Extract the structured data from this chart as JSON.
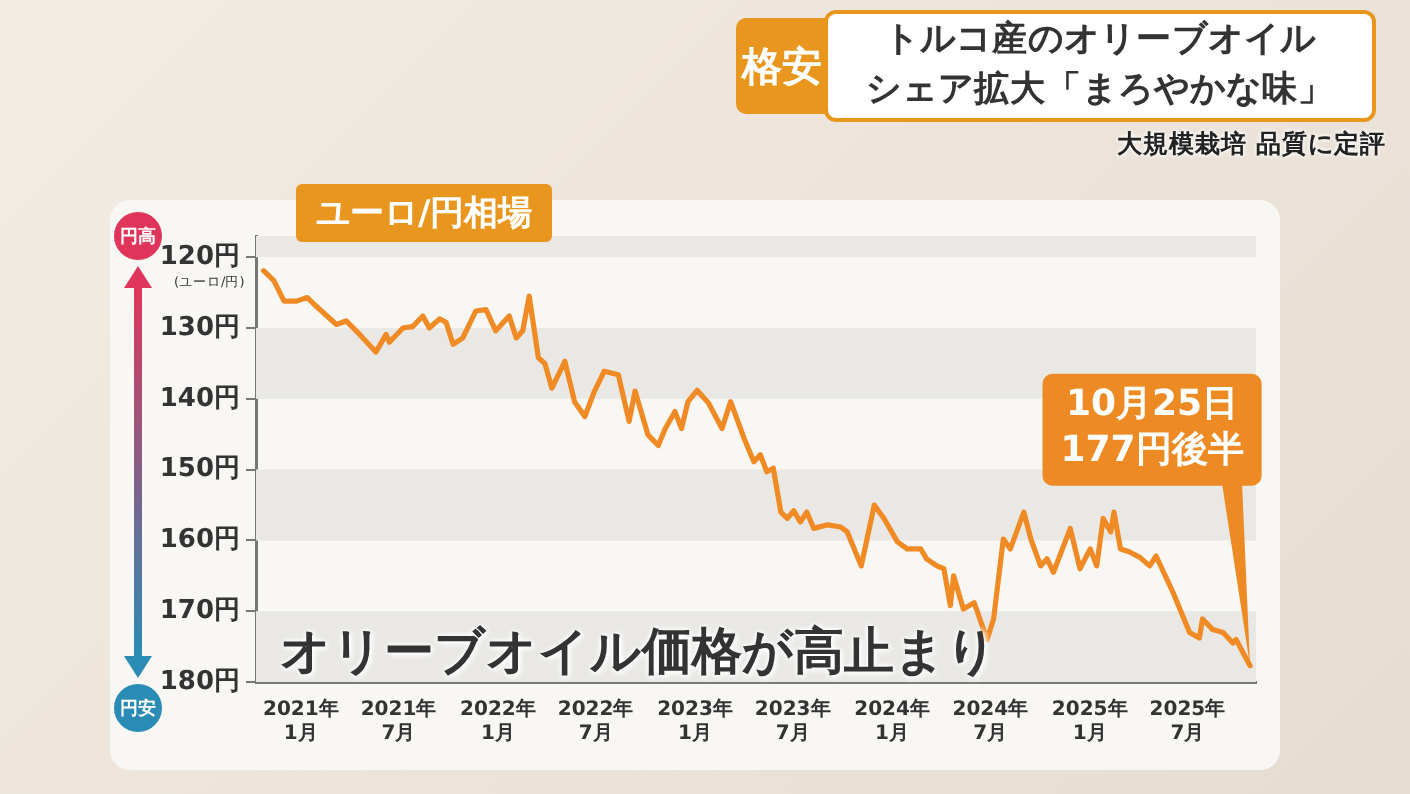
{
  "chart_data": {
    "type": "line",
    "title": "トルコ産のオリーブオイル",
    "subtitle": "シェア拡大「まろやかな味」",
    "ylabel": "(ユーロ/円)",
    "annotations": [
      "大規模栽培 品質に定評",
      "格安",
      "ユーロ/円相場",
      "円高",
      "円安",
      "オリーブオイル価格が高止まり",
      {
        "text": "10月25日\n177円後半",
        "x": "2025-10-25",
        "y": 177.7
      }
    ],
    "series": [
      {
        "color": "#f08a24",
        "x": [
          "2020-10-24",
          "2020-11-12",
          "2020-12-01",
          "2020-12-24",
          "2021-01-13",
          "2021-01-25",
          "2021-03-08",
          "2021-03-26",
          "2021-04-20",
          "2021-05-20",
          "2021-06-08",
          "2021-06-14",
          "2021-07-09",
          "2021-07-27",
          "2021-08-15",
          "2021-08-27",
          "2021-09-15",
          "2021-09-27",
          "2021-10-10",
          "2021-10-28",
          "2021-11-21",
          "2021-12-10",
          "2021-12-28",
          "2022-01-22",
          "2022-02-04",
          "2022-02-16",
          "2022-02-28",
          "2022-03-17",
          "2022-03-29",
          "2022-04-11",
          "2022-05-05",
          "2022-05-23",
          "2022-06-11",
          "2022-06-29",
          "2022-07-17",
          "2022-08-12",
          "2022-09-01",
          "2022-09-12",
          "2022-10-06",
          "2022-10-25",
          "2022-11-07",
          "2022-11-25",
          "2022-12-07",
          "2022-12-19",
          "2023-01-05",
          "2023-01-26",
          "2023-02-20",
          "2023-03-08",
          "2023-04-02",
          "2023-04-20",
          "2023-05-02",
          "2023-05-14",
          "2023-05-26",
          "2023-06-09",
          "2023-06-21",
          "2023-07-03",
          "2023-07-15",
          "2023-07-27",
          "2023-08-09",
          "2023-09-04",
          "2023-09-28",
          "2023-10-10",
          "2023-11-05",
          "2023-11-29",
          "2023-12-17",
          "2024-01-11",
          "2024-01-29",
          "2024-02-23",
          "2024-03-05",
          "2024-03-24",
          "2024-04-06",
          "2024-04-18",
          "2024-04-24",
          "2024-05-12",
          "2024-06-01",
          "2024-06-25",
          "2024-07-07",
          "2024-07-25",
          "2024-08-07",
          "2024-09-01",
          "2024-09-14",
          "2024-10-02",
          "2024-10-14",
          "2024-10-26",
          "2024-11-26",
          "2024-12-14",
          "2025-01-02",
          "2025-01-14",
          "2025-01-26",
          "2025-02-09",
          "2025-02-15",
          "2025-02-27",
          "2025-03-15",
          "2025-04-04",
          "2025-04-22",
          "2025-05-04",
          "2025-06-04",
          "2025-07-05",
          "2025-07-23",
          "2025-07-29",
          "2025-08-17",
          "2025-09-05",
          "2025-09-23",
          "2025-09-29",
          "2025-10-25"
        ],
        "values": [
          121.9,
          123.3,
          126.2,
          126.2,
          125.7,
          126.6,
          129.5,
          129,
          130.9,
          133.4,
          130.9,
          132,
          130,
          129.8,
          128.3,
          130,
          128.7,
          129.2,
          132.3,
          131.4,
          127.6,
          127.4,
          130.4,
          128.3,
          131.4,
          130.4,
          125.5,
          134.2,
          135,
          138.5,
          134.7,
          140.4,
          142.5,
          138.9,
          136.1,
          136.6,
          143.2,
          138.9,
          145.1,
          146.6,
          144.2,
          141.8,
          144.2,
          140.4,
          138.8,
          140.6,
          144.2,
          140.4,
          145.6,
          148.9,
          147.9,
          150.3,
          149.8,
          156,
          156.9,
          155.8,
          157.4,
          156,
          158.3,
          157.8,
          158.1,
          158.8,
          163.6,
          155,
          156.9,
          160.2,
          161.2,
          161.2,
          162.6,
          163.6,
          164,
          169.2,
          165,
          169.7,
          168.8,
          174,
          171.1,
          159.8,
          161.2,
          156,
          159.8,
          163.6,
          162.6,
          164.5,
          158.3,
          164,
          161.2,
          163.6,
          156.9,
          158.8,
          156,
          161.2,
          161.6,
          162.4,
          163.6,
          162.2,
          167.3,
          173,
          173.8,
          171.1,
          172.6,
          173,
          174.5,
          174,
          177.7
        ]
      }
    ],
    "xlim": [
      "2020-10-10",
      "2025-11-05"
    ],
    "xticks": [
      {
        "value": "2021-01",
        "label": "2021年\n1月"
      },
      {
        "value": "2021-07",
        "label": "2021年\n7月"
      },
      {
        "value": "2022-01",
        "label": "2022年\n1月"
      },
      {
        "value": "2022-07",
        "label": "2022年\n7月"
      },
      {
        "value": "2023-01",
        "label": "2023年\n1月"
      },
      {
        "value": "2023-07",
        "label": "2023年\n7月"
      },
      {
        "value": "2024-01",
        "label": "2024年\n1月"
      },
      {
        "value": "2024-07",
        "label": "2024年\n7月"
      },
      {
        "value": "2025-01",
        "label": "2025年\n1月"
      },
      {
        "value": "2025-07",
        "label": "2025年\n7月"
      }
    ],
    "ylim": [
      180,
      117
    ],
    "yticks": [
      {
        "value": 120,
        "label": "120円"
      },
      {
        "value": 130,
        "label": "130円"
      },
      {
        "value": 140,
        "label": "140円"
      },
      {
        "value": 150,
        "label": "150円"
      },
      {
        "value": 160,
        "label": "160円"
      },
      {
        "value": 170,
        "label": "170円"
      },
      {
        "value": 180,
        "label": "180円"
      }
    ],
    "bands": [
      {
        "axis": "y",
        "from": 170,
        "to": 180,
        "color": "#e9e8e5"
      },
      {
        "axis": "y",
        "from": 150,
        "to": 160,
        "color": "#e9e8e5"
      },
      {
        "axis": "y",
        "from": 130,
        "to": 140,
        "color": "#e9e8e5"
      },
      {
        "axis": "y",
        "from": 117,
        "to": 120,
        "color": "#e9e8e5"
      }
    ],
    "marker": "none",
    "line_style": "solid"
  }
}
